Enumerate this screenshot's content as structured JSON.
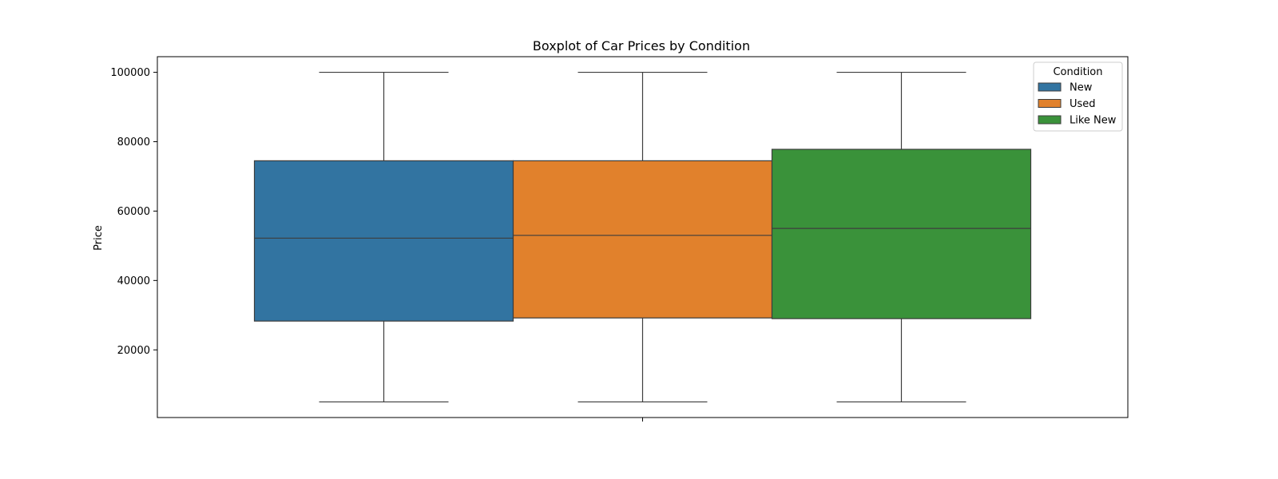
{
  "chart_data": {
    "type": "boxplot",
    "title": "Boxplot of Car Prices by Condition",
    "xlabel": "",
    "ylabel": "Price",
    "ylim": [
      500,
      104500
    ],
    "yticks": [
      20000,
      40000,
      60000,
      80000,
      100000
    ],
    "grid": false,
    "legend": {
      "title": "Condition",
      "placement": "top-right"
    },
    "series": [
      {
        "name": "New",
        "color": "#3274a1",
        "whisker_low": 5000,
        "q1": 28300,
        "median": 52200,
        "q3": 74500,
        "whisker_high": 100000
      },
      {
        "name": "Used",
        "color": "#e1812c",
        "whisker_low": 5000,
        "q1": 29200,
        "median": 53000,
        "q3": 74500,
        "whisker_high": 100000
      },
      {
        "name": "Like New",
        "color": "#3a923a",
        "whisker_low": 5000,
        "q1": 29000,
        "median": 55000,
        "q3": 77800,
        "whisker_high": 100000
      }
    ]
  }
}
